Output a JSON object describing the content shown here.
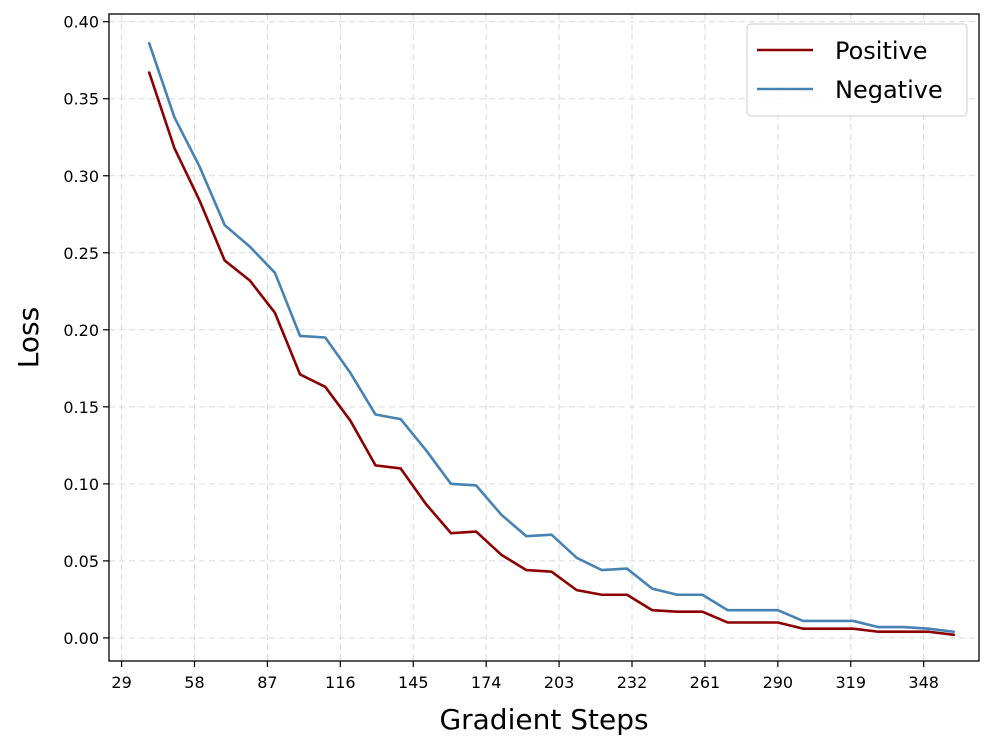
{
  "chart_data": {
    "type": "line",
    "title": "",
    "xlabel": "Gradient Steps",
    "ylabel": "Loss",
    "xlim": [
      24,
      370
    ],
    "ylim": [
      -0.015,
      0.405
    ],
    "x_ticks": [
      29,
      58,
      87,
      116,
      145,
      174,
      203,
      232,
      261,
      290,
      319,
      348
    ],
    "x_tick_labels": [
      "29",
      "58",
      "87",
      "116",
      "145",
      "174",
      "203",
      "232",
      "261",
      "290",
      "319",
      "348"
    ],
    "y_ticks": [
      0.0,
      0.05,
      0.1,
      0.15,
      0.2,
      0.25,
      0.3,
      0.35,
      0.4
    ],
    "y_tick_labels": [
      "0.00",
      "0.05",
      "0.10",
      "0.15",
      "0.20",
      "0.25",
      "0.30",
      "0.35",
      "0.40"
    ],
    "grid": true,
    "legend_position": "top-right",
    "x": [
      40,
      50,
      60,
      70,
      80,
      90,
      100,
      110,
      120,
      130,
      140,
      150,
      160,
      170,
      180,
      190,
      200,
      210,
      220,
      230,
      240,
      250,
      260,
      270,
      280,
      290,
      300,
      310,
      320,
      330,
      340,
      350,
      360
    ],
    "series": [
      {
        "name": "Positive",
        "color": "#8b0000",
        "values": [
          0.367,
          0.318,
          0.284,
          0.245,
          0.232,
          0.211,
          0.171,
          0.163,
          0.141,
          0.112,
          0.11,
          0.087,
          0.068,
          0.069,
          0.054,
          0.044,
          0.043,
          0.031,
          0.028,
          0.028,
          0.018,
          0.017,
          0.017,
          0.01,
          0.01,
          0.01,
          0.006,
          0.006,
          0.006,
          0.004,
          0.004,
          0.004,
          0.002
        ]
      },
      {
        "name": "Negative",
        "color": "#4682b4",
        "values": [
          0.386,
          0.338,
          0.306,
          0.268,
          0.254,
          0.237,
          0.196,
          0.195,
          0.172,
          0.145,
          0.142,
          0.122,
          0.1,
          0.099,
          0.08,
          0.066,
          0.067,
          0.052,
          0.044,
          0.045,
          0.032,
          0.028,
          0.028,
          0.018,
          0.018,
          0.018,
          0.011,
          0.011,
          0.011,
          0.007,
          0.007,
          0.006,
          0.004
        ]
      }
    ]
  }
}
